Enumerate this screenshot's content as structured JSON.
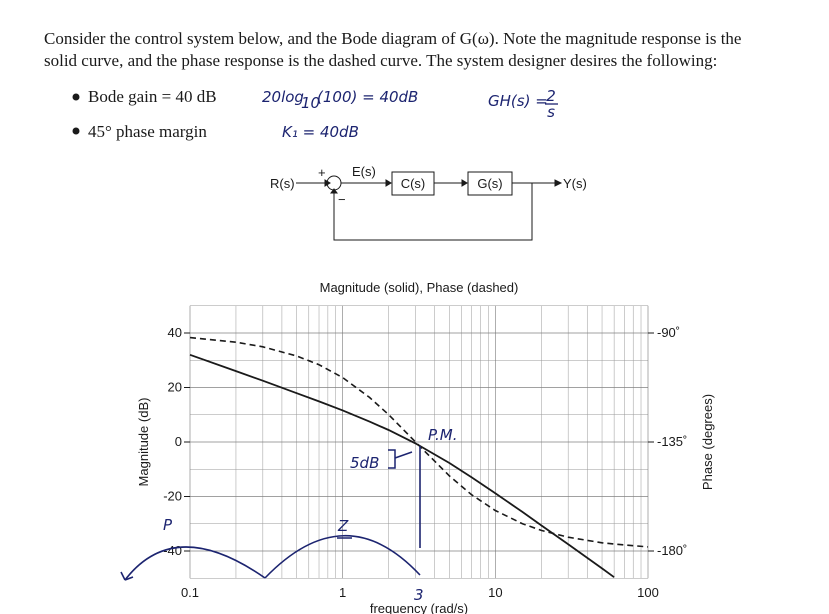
{
  "document": {
    "paragraph": [
      "Consider the control system below, and the Bode diagram of G(ω). Note the magnitude response is the",
      "solid curve, and the phase response is the dashed curve. The system designer desires the following:"
    ],
    "bullets": [
      "Bode gain = 40 dB",
      "45° phase margin"
    ]
  },
  "annotations": {
    "log_a": "20log",
    "log_sub": "10",
    "log_b": "(100) = 40dB",
    "gh": "GH(s) =",
    "gh_num": "2",
    "gh_den": "s",
    "k1": "K₁ = 40dB",
    "five_db": "5dB",
    "pm": "P.M.",
    "p": "P",
    "z": "Z",
    "three": "3"
  },
  "diagram": {
    "input": "R(s)",
    "plus": "+",
    "minus": "−",
    "error": "E(s)",
    "controller": "C(s)",
    "plant": "G(s)",
    "output": "Y(s)"
  },
  "chart_data": {
    "type": "line",
    "title": "Magnitude (solid), Phase (dashed)",
    "x_label": "frequency (rad/s)",
    "y_label": "Magnitude (dB)",
    "y2_label": "Phase (degrees)",
    "x": [
      0.1,
      0.2,
      0.3,
      0.5,
      0.7,
      1,
      1.5,
      2,
      3,
      5,
      7,
      10,
      15,
      20,
      30,
      50,
      60,
      70,
      100
    ],
    "series": [
      {
        "color": "#1a1a1a",
        "dashed": false,
        "axis": "y",
        "values": [
          32.0,
          26.0,
          22.5,
          17.9,
          14.9,
          11.6,
          7.5,
          4.4,
          -0.5,
          -7.7,
          -13.0,
          -18.8,
          -25.6,
          -30.6,
          -37.5,
          -46.4,
          -49.6,
          null,
          null
        ]
      },
      {
        "color": "#1a1a1a",
        "dashed": true,
        "axis": "y2",
        "values": [
          -91.9,
          -93.8,
          -95.7,
          -99.5,
          -103.1,
          -108.4,
          -116.6,
          -123.7,
          -135,
          -149.0,
          -156.8,
          -163.3,
          -168.7,
          -171.5,
          -174.3,
          -176.6,
          -177.1,
          -177.5,
          -178.3
        ]
      }
    ],
    "xlim": [
      0.1,
      100
    ],
    "xticks": [
      0.1,
      1,
      10,
      100
    ],
    "x_log": true,
    "ylim": [
      -50,
      50
    ],
    "yticks": [
      -40,
      -20,
      0,
      20,
      40
    ],
    "y2lim": [
      -191.25,
      -78.75
    ],
    "y2ticks": [
      {
        "value": -90,
        "label": "-90˚"
      },
      {
        "value": -135,
        "label": "-135˚"
      },
      {
        "value": -180,
        "label": "-180˚"
      }
    ],
    "grid": true,
    "minor_grid": true
  }
}
